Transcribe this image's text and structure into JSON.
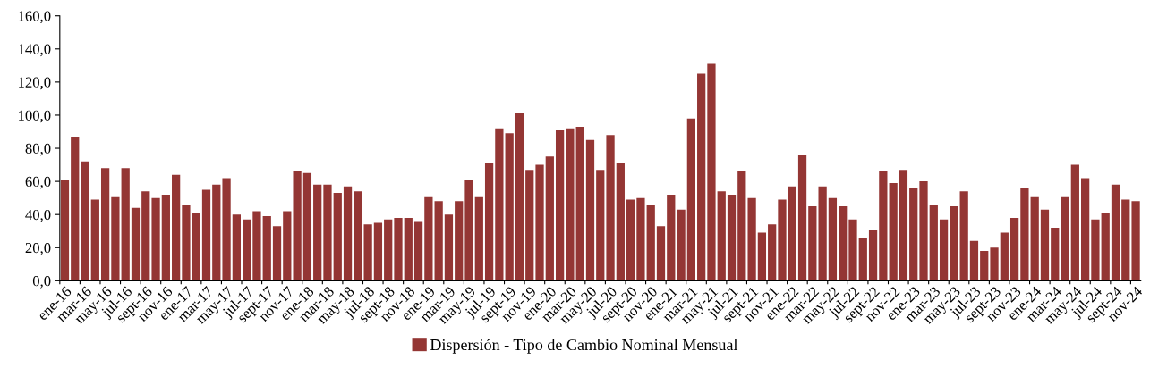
{
  "chart_data": {
    "type": "bar",
    "categories": [
      "ene-16",
      null,
      "mar-16",
      null,
      "may-16",
      null,
      "jul-16",
      null,
      "sept-16",
      null,
      "nov-16",
      null,
      "ene-17",
      null,
      "mar-17",
      null,
      "may-17",
      null,
      "jul-17",
      null,
      "sept-17",
      null,
      "nov-17",
      null,
      "ene-18",
      null,
      "mar-18",
      null,
      "may-18",
      null,
      "jul-18",
      null,
      "sept-18",
      null,
      "nov-18",
      null,
      "ene-19",
      null,
      "mar-19",
      null,
      "may-19",
      null,
      "jul-19",
      null,
      "sept-19",
      null,
      "nov-19",
      null,
      "ene-20",
      null,
      "mar-20",
      null,
      "may-20",
      null,
      "jul-20",
      null,
      "sept-20",
      null,
      "nov-20",
      null,
      "ene-21",
      null,
      "mar-21",
      null,
      "may-21",
      null,
      "jul-21",
      null,
      "sept-21",
      null,
      "nov-21",
      null,
      "ene-22",
      null,
      "mar-22",
      null,
      "may-22",
      null,
      "jul-22",
      null,
      "sept-22",
      null,
      "nov-22",
      null,
      "ene-23",
      null,
      "mar-23",
      null,
      "may-23",
      null,
      "jul-23",
      null,
      "sept-23",
      null,
      "nov-23",
      null,
      "ene-24",
      null,
      "mar-24",
      null,
      "may-24",
      null,
      "jul-24",
      null,
      "sept-24",
      null,
      "nov-24"
    ],
    "series": [
      {
        "name": "Dispersión - Tipo de Cambio Nominal Mensual",
        "color": "#943634",
        "values": [
          61,
          87,
          72,
          49,
          68,
          51,
          68,
          44,
          54,
          50,
          52,
          64,
          46,
          41,
          55,
          58,
          62,
          40,
          37,
          42,
          39,
          33,
          42,
          66,
          65,
          58,
          58,
          53,
          57,
          54,
          34,
          35,
          37,
          38,
          38,
          36,
          51,
          48,
          40,
          48,
          61,
          51,
          71,
          92,
          89,
          101,
          67,
          70,
          75,
          91,
          92,
          93,
          85,
          67,
          88,
          71,
          49,
          50,
          46,
          33,
          52,
          43,
          98,
          125,
          131,
          54,
          52,
          66,
          50,
          29,
          34,
          49,
          57,
          76,
          45,
          57,
          50,
          45,
          37,
          26,
          31,
          66,
          59,
          67,
          56,
          60,
          46,
          37,
          45,
          54,
          24,
          18,
          20,
          29,
          38,
          56,
          51,
          43,
          32,
          51,
          70,
          62,
          37,
          41,
          58,
          49,
          48
        ]
      }
    ],
    "ylim": [
      0,
      160
    ],
    "yticks": [
      {
        "value": 0,
        "label": "0,0"
      },
      {
        "value": 20,
        "label": "20,0"
      },
      {
        "value": 40,
        "label": "40,0"
      },
      {
        "value": 60,
        "label": "60,0"
      },
      {
        "value": 80,
        "label": "80,0"
      },
      {
        "value": 100,
        "label": "100,0"
      },
      {
        "value": 120,
        "label": "120,0"
      },
      {
        "value": 140,
        "label": "140,0"
      },
      {
        "value": 160,
        "label": "160,0"
      }
    ],
    "grid": false,
    "legend": "bottom"
  }
}
